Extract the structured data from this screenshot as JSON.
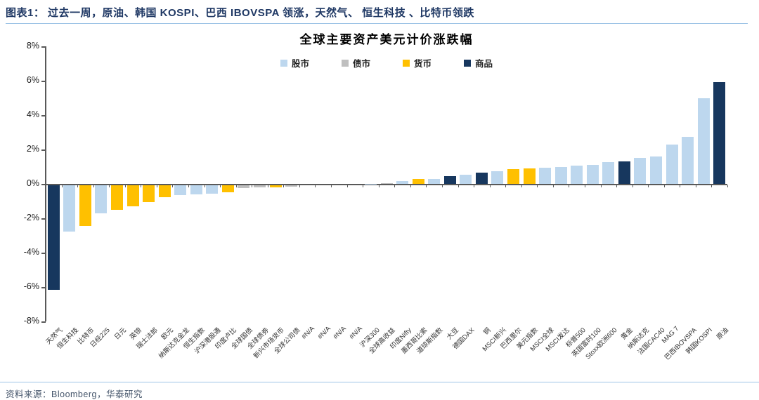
{
  "page": {
    "header": "图表1：  过去一周，原油、韩国 KOSPI、巴西 IBOVSPA 领涨，天然气、 恒生科技 、比特币领跌",
    "source": "资料来源：Bloomberg，华泰研究"
  },
  "chart_data": {
    "type": "bar",
    "title": "全球主要资产美元计价涨跌幅",
    "xlabel": "",
    "ylabel": "",
    "ylim": [
      -8,
      8
    ],
    "ytick_labels": [
      "8%",
      "6%",
      "4%",
      "2%",
      "0%",
      "-2%",
      "-4%",
      "-6%",
      "-8%"
    ],
    "grid": false,
    "legend_position": "top-center",
    "legend": [
      {
        "key": "stock",
        "label": "股市",
        "color": "#BDD7EE"
      },
      {
        "key": "bond",
        "label": "债市",
        "color": "#BFBFBF"
      },
      {
        "key": "currency",
        "label": "货币",
        "color": "#FFC000"
      },
      {
        "key": "commodity",
        "label": "商品",
        "color": "#17375E"
      }
    ],
    "bars": [
      {
        "label": "天然气",
        "value": -6.1,
        "type": "commodity"
      },
      {
        "label": "恒生科技",
        "value": -2.7,
        "type": "stock"
      },
      {
        "label": "比特币",
        "value": -2.4,
        "type": "currency"
      },
      {
        "label": "日经225",
        "value": -1.65,
        "type": "stock"
      },
      {
        "label": "日元",
        "value": -1.45,
        "type": "currency"
      },
      {
        "label": "英镑",
        "value": -1.25,
        "type": "currency"
      },
      {
        "label": "瑞士法郎",
        "value": -1.0,
        "type": "currency"
      },
      {
        "label": "欧元",
        "value": -0.7,
        "type": "currency"
      },
      {
        "label": "纳斯达克金龙",
        "value": -0.6,
        "type": "stock"
      },
      {
        "label": "恒生指数",
        "value": -0.57,
        "type": "stock"
      },
      {
        "label": "沪深港股通",
        "value": -0.53,
        "type": "stock"
      },
      {
        "label": "印度卢比",
        "value": -0.42,
        "type": "currency"
      },
      {
        "label": "全球国债",
        "value": -0.18,
        "type": "bond"
      },
      {
        "label": "全球债券",
        "value": -0.16,
        "type": "bond"
      },
      {
        "label": "新兴市场货币",
        "value": -0.13,
        "type": "currency"
      },
      {
        "label": "全球公司债",
        "value": -0.1,
        "type": "bond"
      },
      {
        "label": "#N/A",
        "value": 0,
        "type": "none"
      },
      {
        "label": "#N/A",
        "value": 0,
        "type": "none"
      },
      {
        "label": "#N/A",
        "value": 0,
        "type": "none"
      },
      {
        "label": "#N/A",
        "value": 0,
        "type": "none"
      },
      {
        "label": "沪深300",
        "value": 0.02,
        "type": "stock"
      },
      {
        "label": "全球高收益",
        "value": 0.03,
        "type": "bond"
      },
      {
        "label": "印度Nifty",
        "value": 0.15,
        "type": "stock"
      },
      {
        "label": "墨西哥比索",
        "value": 0.27,
        "type": "currency"
      },
      {
        "label": "道琼斯指数",
        "value": 0.3,
        "type": "stock"
      },
      {
        "label": "大豆",
        "value": 0.45,
        "type": "commodity"
      },
      {
        "label": "德国DAX",
        "value": 0.55,
        "type": "stock"
      },
      {
        "label": "铜",
        "value": 0.65,
        "type": "commodity"
      },
      {
        "label": "MSCI新兴",
        "value": 0.75,
        "type": "stock"
      },
      {
        "label": "巴西里尔",
        "value": 0.85,
        "type": "currency"
      },
      {
        "label": "美元指数",
        "value": 0.88,
        "type": "currency"
      },
      {
        "label": "MSCI全球",
        "value": 0.95,
        "type": "stock"
      },
      {
        "label": "MSCI发达",
        "value": 1.0,
        "type": "stock"
      },
      {
        "label": "标普500",
        "value": 1.05,
        "type": "stock"
      },
      {
        "label": "英国富时100",
        "value": 1.12,
        "type": "stock"
      },
      {
        "label": "Stoxx欧洲600",
        "value": 1.25,
        "type": "stock"
      },
      {
        "label": "黄金",
        "value": 1.3,
        "type": "commodity"
      },
      {
        "label": "纳斯达克",
        "value": 1.5,
        "type": "stock"
      },
      {
        "label": "法国CAC40",
        "value": 1.6,
        "type": "stock"
      },
      {
        "label": "MAG 7",
        "value": 2.3,
        "type": "stock"
      },
      {
        "label": "巴西IBOVSPA",
        "value": 2.75,
        "type": "stock"
      },
      {
        "label": "韩国KOSPI",
        "value": 5.0,
        "type": "stock"
      },
      {
        "label": "原油",
        "value": 5.9,
        "type": "commodity"
      }
    ]
  }
}
